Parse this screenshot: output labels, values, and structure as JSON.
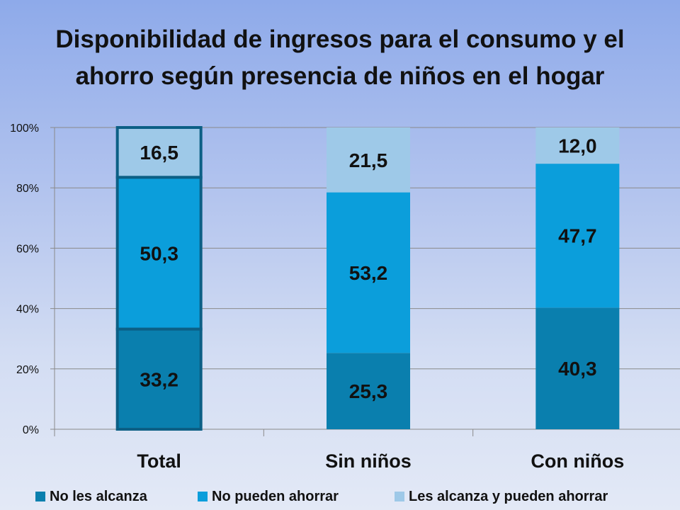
{
  "chart_data": {
    "type": "bar",
    "stacked": true,
    "title": "Disponibilidad de ingresos para el consumo y el ahorro según presencia de niños en el hogar",
    "title_lines": [
      "Disponibilidad de ingresos para el consumo y el",
      "ahorro según presencia de niños en el hogar"
    ],
    "categories": [
      "Total",
      "Sin niños",
      "Con niños"
    ],
    "series": [
      {
        "name": "No les alcanza",
        "values": [
          33.2,
          25.3,
          40.3
        ],
        "labels": [
          "33,2",
          "25,3",
          "40,3"
        ],
        "color": "#0a7fae"
      },
      {
        "name": "No pueden ahorrar",
        "values": [
          50.3,
          53.2,
          47.7
        ],
        "labels": [
          "50,3",
          "53,2",
          "47,7"
        ],
        "color": "#0b9edb"
      },
      {
        "name": "Les alcanza y pueden ahorrar",
        "values": [
          16.5,
          21.5,
          12.0
        ],
        "labels": [
          "16,5",
          "21,5",
          "12,0"
        ],
        "color": "#9ec9e8"
      }
    ],
    "y_ticks": [
      "0%",
      "20%",
      "40%",
      "60%",
      "80%",
      "100%"
    ],
    "ylim": [
      0,
      100
    ],
    "xlabel": "",
    "ylabel": "",
    "grid": true,
    "legend_position": "bottom",
    "highlighted_category": "Total",
    "highlight_color": "#0c5f85"
  }
}
